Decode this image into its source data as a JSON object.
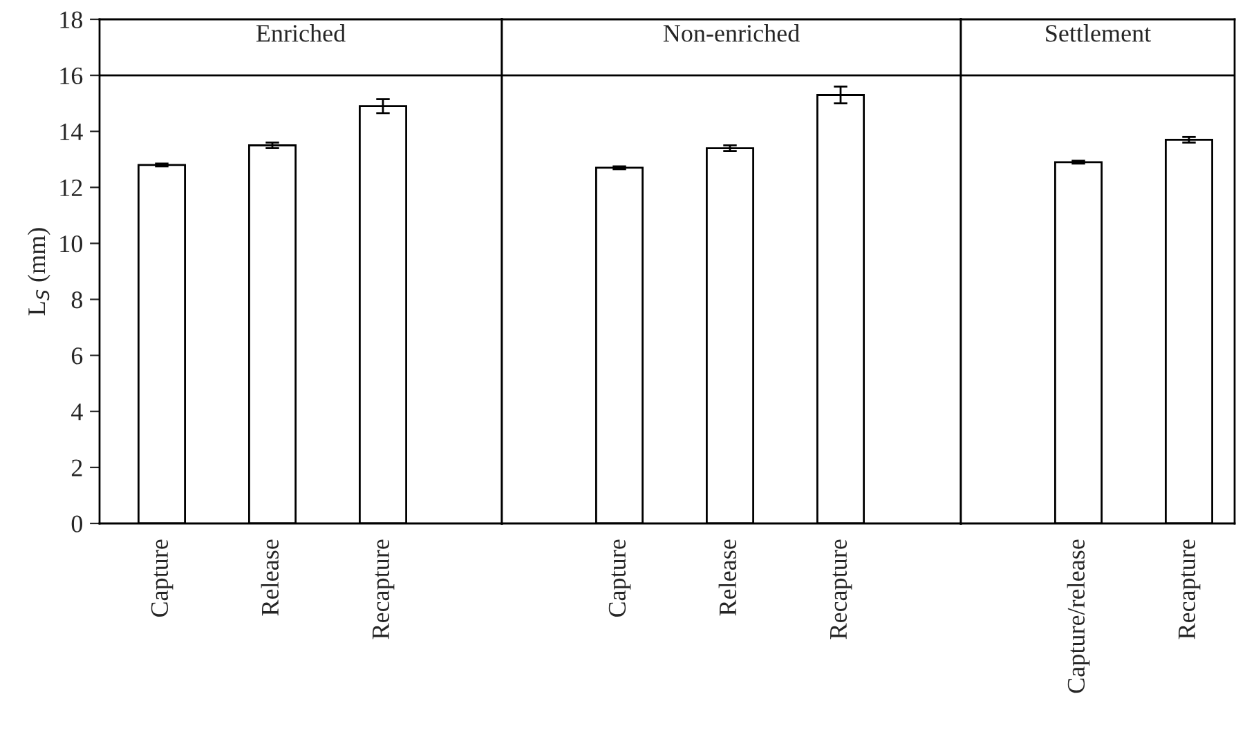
{
  "chart_data": [
    {
      "type": "bar",
      "categories": [
        "Capture",
        "Release",
        "Recapture"
      ],
      "values": [
        12.8,
        13.5,
        14.9
      ],
      "errors": [
        0.05,
        0.1,
        0.25
      ],
      "color": "#ffffff",
      "ylabel": "L$_{S}$ (mm)",
      "ylim": [
        0,
        18
      ],
      "yticks": [
        0,
        2,
        4,
        6,
        8,
        10,
        12,
        14,
        16,
        18
      ],
      "grid": false,
      "title": "Enriched",
      "ref_lines": [
        {
          "axis": "y",
          "value": 16
        }
      ]
    },
    {
      "type": "bar",
      "categories": [
        "Capture",
        "Release",
        "Recapture"
      ],
      "values": [
        12.7,
        13.4,
        15.3
      ],
      "errors": [
        0.05,
        0.1,
        0.3
      ],
      "color": "#ffffff",
      "ylim": [
        0,
        18
      ],
      "yticks": [
        0,
        2,
        4,
        6,
        8,
        10,
        12,
        14,
        16,
        18
      ],
      "tick_labels": "x",
      "grid": false,
      "title": "Non-enriched",
      "ref_lines": [
        {
          "axis": "y",
          "value": 16
        }
      ]
    },
    {
      "type": "bar",
      "categories": [
        "Capture/release",
        "Recapture"
      ],
      "values": [
        12.9,
        13.7
      ],
      "errors": [
        0.05,
        0.1
      ],
      "color": "#ffffff",
      "ylim": [
        0,
        18
      ],
      "yticks": [
        0,
        2,
        4,
        6,
        8,
        10,
        12,
        14,
        16,
        18
      ],
      "tick_labels": "x",
      "grid": false,
      "title": "Settlement",
      "ref_lines": [
        {
          "axis": "y",
          "value": 16
        }
      ]
    }
  ]
}
